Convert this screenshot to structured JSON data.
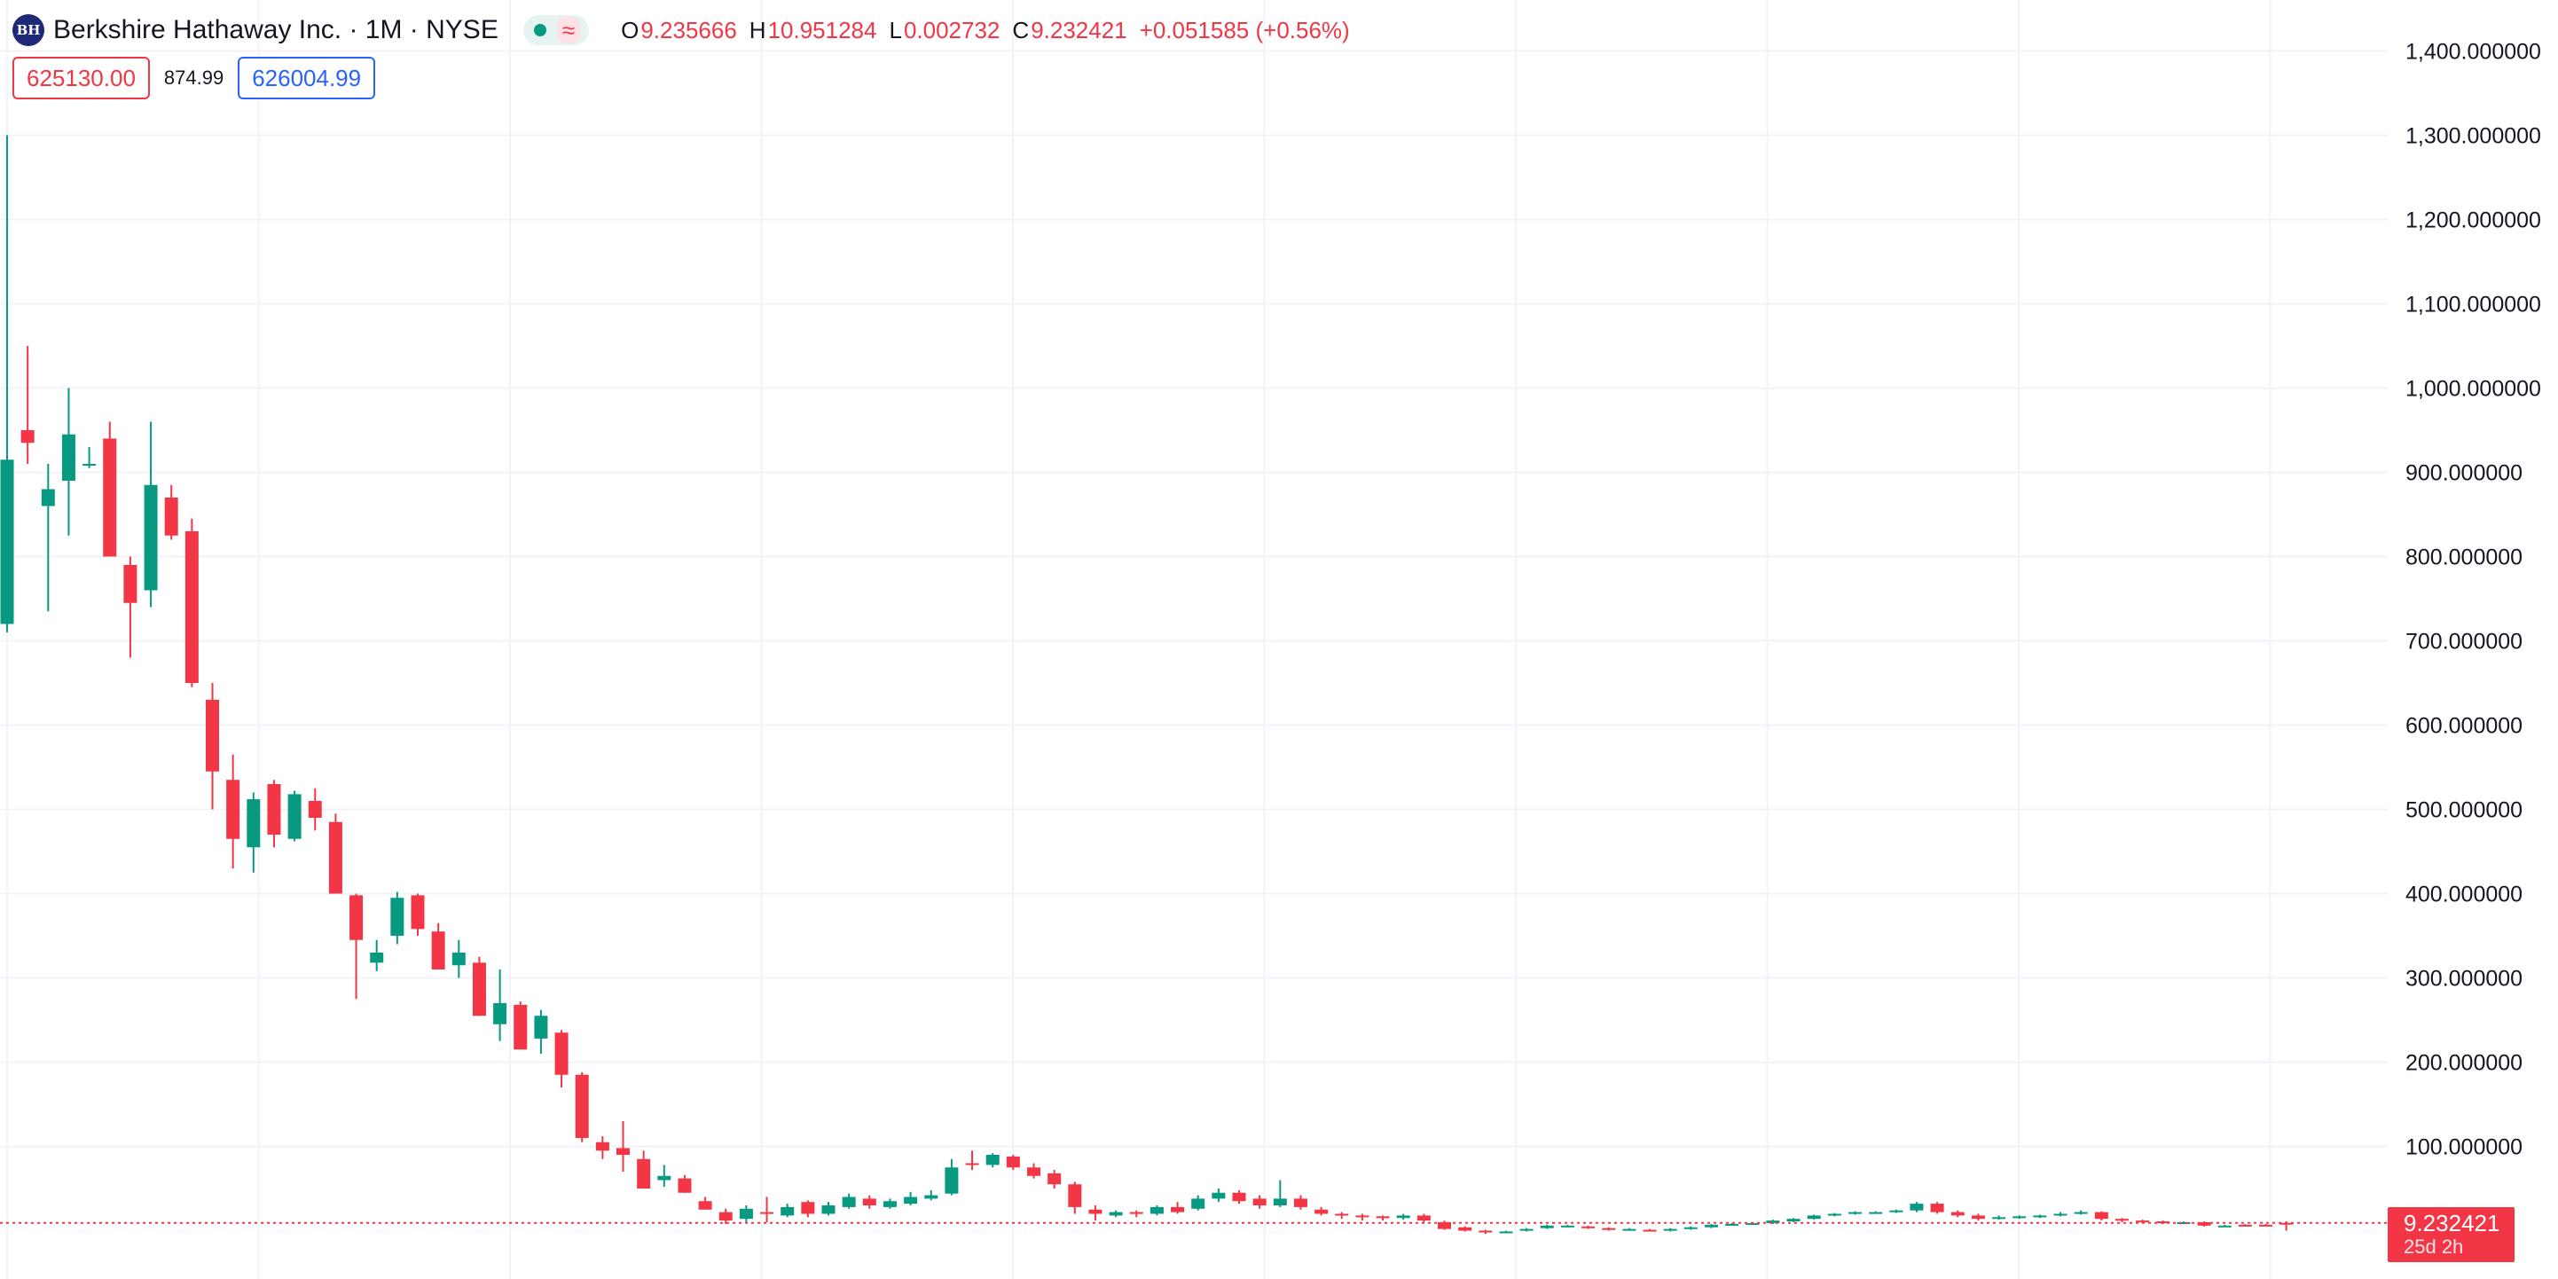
{
  "header": {
    "logo_text": "BH",
    "title": "Berkshire Hathaway Inc. · 1M · NYSE",
    "status_icon": "market-status-dot",
    "status_approx": "≈",
    "ohlc": {
      "o_label": "O",
      "o_value": "9.235666",
      "h_label": "H",
      "h_value": "10.951284",
      "l_label": "L",
      "l_value": "0.002732",
      "c_label": "C",
      "c_value": "9.232421",
      "change": "+0.051585 (+0.56%)"
    }
  },
  "quote": {
    "sell": "625130.00",
    "spread": "874.99",
    "buy": "626004.99"
  },
  "last_price": {
    "price": "9.232421",
    "countdown": "25d 2h"
  },
  "colors": {
    "up": "#089981",
    "down": "#f23645",
    "grid": "#f0f3fa",
    "axis_text": "#131722"
  },
  "chart_data": {
    "type": "candlestick",
    "y_axis": {
      "ticks": [
        "100.000000",
        "200.000000",
        "300.000000",
        "400.000000",
        "500.000000",
        "600.000000",
        "700.000000",
        "800.000000",
        "900.000000",
        "1,000.000000",
        "1,100.000000",
        "1,200.000000",
        "1,300.000000",
        "1,400.000000"
      ],
      "tick_values": [
        100,
        200,
        300,
        400,
        500,
        600,
        700,
        800,
        900,
        1000,
        1100,
        1200,
        1300,
        1400
      ],
      "range": [
        -65,
        1450
      ]
    },
    "grid": true,
    "last_price": 9.232421,
    "candles": [
      [
        720,
        915,
        710,
        1300
      ],
      [
        950,
        935,
        910,
        1050
      ],
      [
        860,
        880,
        735,
        910
      ],
      [
        890,
        945,
        825,
        1000
      ],
      [
        910,
        910,
        905,
        930
      ],
      [
        940,
        800,
        800,
        960
      ],
      [
        790,
        745,
        680,
        800
      ],
      [
        760,
        885,
        740,
        960
      ],
      [
        870,
        825,
        820,
        885
      ],
      [
        830,
        650,
        645,
        845
      ],
      [
        630,
        545,
        500,
        650
      ],
      [
        535,
        465,
        430,
        565
      ],
      [
        455,
        512,
        425,
        520
      ],
      [
        530,
        470,
        455,
        535
      ],
      [
        465,
        518,
        462,
        522
      ],
      [
        510,
        490,
        475,
        525
      ],
      [
        485,
        400,
        400,
        495
      ],
      [
        398,
        345,
        275,
        400
      ],
      [
        318,
        330,
        308,
        345
      ],
      [
        350,
        395,
        340,
        402
      ],
      [
        398,
        358,
        350,
        400
      ],
      [
        355,
        310,
        310,
        365
      ],
      [
        315,
        330,
        300,
        345
      ],
      [
        318,
        255,
        255,
        325
      ],
      [
        245,
        270,
        225,
        310
      ],
      [
        268,
        215,
        215,
        272
      ],
      [
        228,
        255,
        210,
        262
      ],
      [
        235,
        185,
        170,
        238
      ],
      [
        185,
        110,
        105,
        188
      ],
      [
        105,
        95,
        85,
        112
      ],
      [
        98,
        90,
        70,
        130
      ],
      [
        85,
        50,
        50,
        95
      ],
      [
        60,
        65,
        52,
        78
      ],
      [
        62,
        45,
        45,
        66
      ],
      [
        35,
        25,
        25,
        40
      ],
      [
        22,
        12,
        8,
        26
      ],
      [
        14,
        26,
        10,
        30
      ],
      [
        22,
        20,
        10,
        40
      ],
      [
        18,
        28,
        16,
        32
      ],
      [
        34,
        20,
        16,
        36
      ],
      [
        20,
        30,
        18,
        34
      ],
      [
        28,
        40,
        26,
        44
      ],
      [
        38,
        30,
        26,
        42
      ],
      [
        28,
        35,
        26,
        38
      ],
      [
        32,
        40,
        30,
        46
      ],
      [
        38,
        42,
        36,
        48
      ],
      [
        44,
        75,
        42,
        85
      ],
      [
        80,
        78,
        72,
        95
      ],
      [
        78,
        90,
        75,
        92
      ],
      [
        88,
        75,
        72,
        90
      ],
      [
        75,
        65,
        62,
        80
      ],
      [
        68,
        55,
        50,
        72
      ],
      [
        55,
        28,
        20,
        58
      ],
      [
        25,
        20,
        12,
        30
      ],
      [
        18,
        22,
        16,
        24
      ],
      [
        22,
        20,
        16,
        24
      ],
      [
        20,
        28,
        18,
        30
      ],
      [
        28,
        22,
        20,
        34
      ],
      [
        26,
        38,
        24,
        42
      ],
      [
        38,
        45,
        34,
        50
      ],
      [
        45,
        35,
        32,
        48
      ],
      [
        38,
        30,
        26,
        42
      ],
      [
        30,
        38,
        28,
        60
      ],
      [
        38,
        28,
        25,
        42
      ],
      [
        25,
        20,
        18,
        28
      ],
      [
        20,
        18,
        14,
        22
      ],
      [
        18,
        16,
        12,
        20
      ],
      [
        17,
        15,
        12,
        18
      ],
      [
        15,
        18,
        13,
        20
      ],
      [
        18,
        12,
        10,
        20
      ],
      [
        10,
        2,
        1,
        12
      ],
      [
        4,
        0,
        -1,
        5
      ],
      [
        0,
        -2,
        -4,
        1
      ],
      [
        -2,
        -1,
        -3,
        0
      ],
      [
        0,
        2,
        -1,
        3
      ],
      [
        3,
        6,
        2,
        7
      ],
      [
        6,
        6,
        4,
        7
      ],
      [
        5,
        3,
        2,
        6
      ],
      [
        3,
        1,
        0,
        4
      ],
      [
        2,
        2,
        1,
        3
      ],
      [
        1,
        0,
        -1,
        2
      ],
      [
        0,
        2,
        -1,
        3
      ],
      [
        2,
        4,
        1,
        5
      ],
      [
        4,
        7,
        3,
        8
      ],
      [
        7,
        8,
        6,
        9
      ],
      [
        8,
        9,
        7,
        10
      ],
      [
        9,
        12,
        8,
        13
      ],
      [
        11,
        14,
        10,
        15
      ],
      [
        14,
        18,
        13,
        19
      ],
      [
        18,
        20,
        17,
        21
      ],
      [
        20,
        22,
        19,
        23
      ],
      [
        22,
        22,
        21,
        23
      ],
      [
        22,
        24,
        21,
        25
      ],
      [
        24,
        32,
        22,
        34
      ],
      [
        32,
        22,
        20,
        34
      ],
      [
        22,
        18,
        16,
        24
      ],
      [
        18,
        14,
        12,
        20
      ],
      [
        14,
        16,
        13,
        18
      ],
      [
        16,
        17,
        14,
        18
      ],
      [
        17,
        18,
        15,
        19
      ],
      [
        18,
        20,
        17,
        22
      ],
      [
        20,
        22,
        19,
        24
      ],
      [
        22,
        14,
        12,
        23
      ],
      [
        14,
        12,
        10,
        15
      ],
      [
        12,
        11,
        9,
        13
      ],
      [
        11,
        10,
        8,
        12
      ],
      [
        10,
        10,
        8,
        11
      ],
      [
        10,
        6,
        5,
        11
      ],
      [
        6,
        6,
        5,
        7
      ],
      [
        7,
        6,
        5,
        8
      ],
      [
        7,
        6,
        5,
        8
      ],
      [
        9.235666,
        9.232421,
        0.002732,
        10.951284
      ]
    ]
  }
}
